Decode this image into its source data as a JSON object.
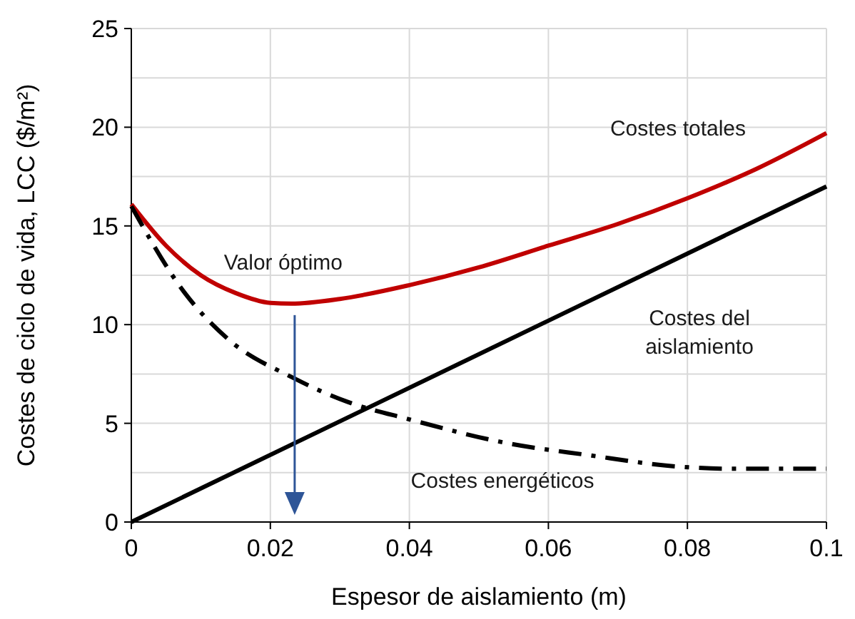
{
  "chart_data": {
    "type": "line",
    "xlabel": "Espesor de aislamiento (m)",
    "ylabel": "Costes de ciclo de vida, LCC ($/m²)",
    "xlim": [
      0,
      0.1
    ],
    "xticks": [
      0,
      0.02,
      0.04,
      0.06,
      0.08,
      0.1
    ],
    "ylim": [
      0,
      25
    ],
    "yticks": [
      0,
      {
        "value": 2.5,
        "label": null
      },
      5,
      {
        "value": 7.5,
        "label": null
      },
      10,
      {
        "value": 12.5,
        "label": null
      },
      15,
      {
        "value": 17.5,
        "label": null
      },
      20,
      {
        "value": 22.5,
        "label": null
      },
      25
    ],
    "grid": true,
    "marker": "none",
    "series": [
      {
        "name": "Costes totales",
        "color": "#c00000",
        "line_style": "solid",
        "x": [
          0,
          0.005,
          0.01,
          0.015,
          0.02,
          0.023,
          0.03,
          0.04,
          0.05,
          0.06,
          0.07,
          0.08,
          0.09,
          0.1
        ],
        "values": [
          16.1,
          14.0,
          12.5,
          11.6,
          11.1,
          11.06,
          11.3,
          12.0,
          12.9,
          14.0,
          15.1,
          16.4,
          17.9,
          19.7
        ]
      },
      {
        "name": "Costes del aislamiento",
        "color": "#000000",
        "line_style": "solid",
        "x": [
          0,
          0.1
        ],
        "values": [
          0,
          17.0
        ]
      },
      {
        "name": "Costes energéticos",
        "color": "#000000",
        "line_style": "dashed",
        "x": [
          0,
          0.0077,
          0.0138,
          0.0233,
          0.031,
          0.04,
          0.054,
          0.0655,
          0.079,
          0.086,
          0.1
        ],
        "values": [
          16.0,
          11.6,
          9.3,
          7.3,
          6.1,
          5.2,
          4.0,
          3.4,
          2.8,
          2.7,
          2.7
        ]
      }
    ],
    "annotations": [
      {
        "text": "Valor óptimo",
        "x": 0.0235,
        "y": 11.06
      }
    ]
  }
}
